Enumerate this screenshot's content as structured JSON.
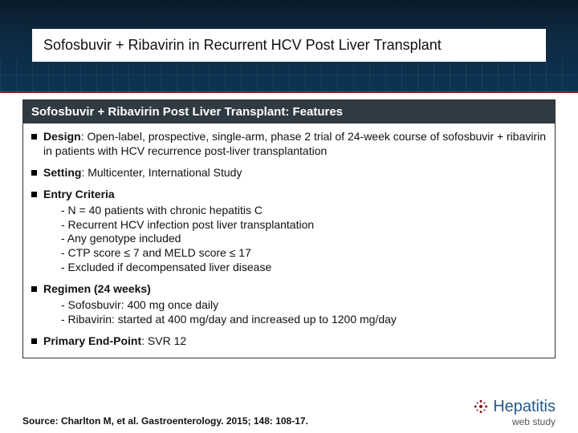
{
  "slide": {
    "title": "Sofosbuvir + Ribavirin in Recurrent HCV Post Liver Transplant",
    "panel_header": "Sofosbuvir + Ribavirin Post Liver Transplant: Features",
    "points": {
      "design": {
        "label": "Design",
        "text": ": Open-label, prospective, single-arm, phase 2 trial of 24-week course of sofosbuvir + ribavirin in patients with HCV recurrence post-liver transplantation"
      },
      "setting": {
        "label": "Setting",
        "text": ": Multicenter, International Study"
      },
      "entry": {
        "label": "Entry Criteria",
        "sub": [
          "- N = 40 patients with chronic hepatitis C",
          "- Recurrent HCV infection post liver transplantation",
          "- Any genotype included",
          "- CTP score ≤ 7 and MELD score ≤ 17",
          "- Excluded if decompensated liver disease"
        ]
      },
      "regimen": {
        "label": "Regimen (24 weeks)",
        "sub": [
          "- Sofosbuvir: 400 mg once daily",
          "- Ribavirin: started at 400 mg/day and increased up to 1200 mg/day"
        ]
      },
      "endpoint": {
        "label": "Primary End-Point",
        "text": ": SVR 12"
      }
    },
    "source": "Source: Charlton M, et al. Gastroenterology. 2015; 148: 108-17.",
    "brand": {
      "name": "Hepatitis",
      "tagline": "web study"
    },
    "colors": {
      "header_grad_top": "#0a1a28",
      "header_grad_bottom": "#0d3354",
      "accent_red": "#8a1f1f",
      "panel_header_bg": "#2f3a42",
      "brand_blue": "#235a8c"
    }
  }
}
